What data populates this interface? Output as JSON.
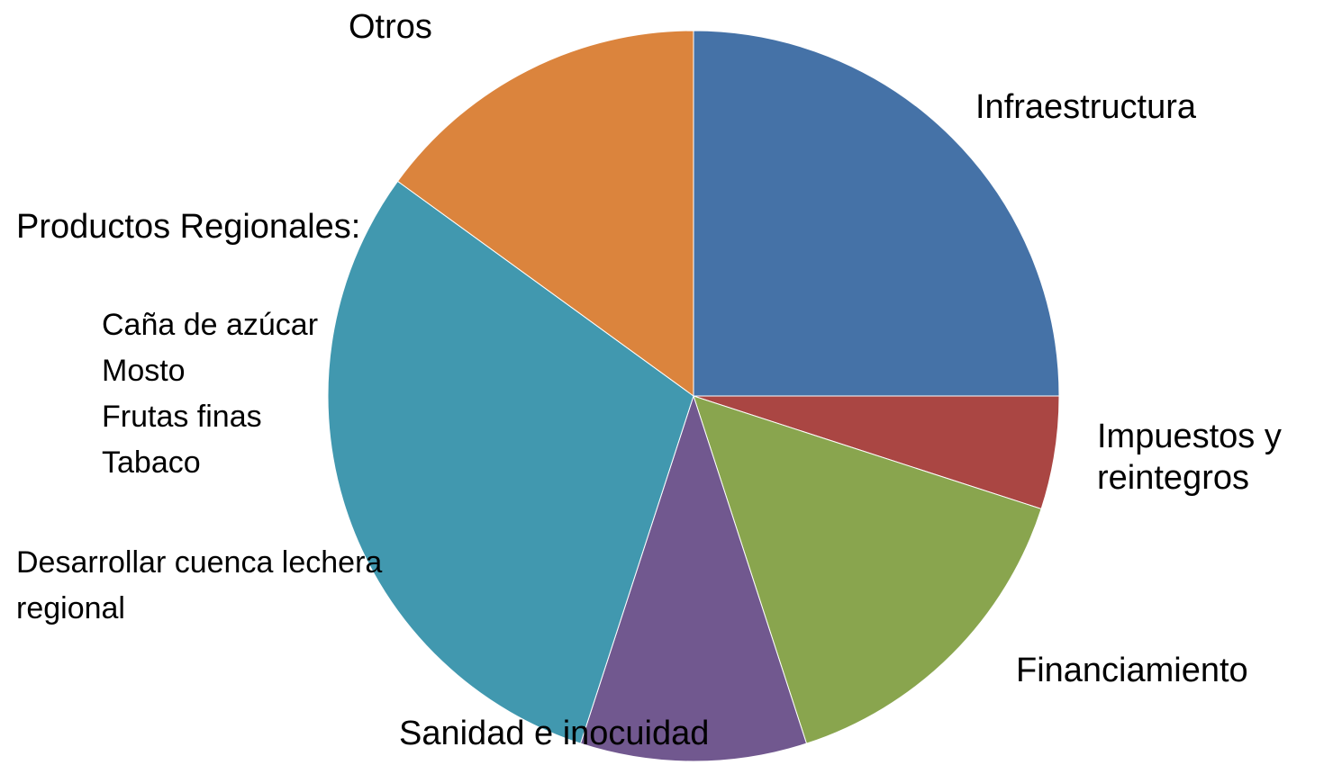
{
  "chart_data": {
    "type": "pie",
    "categories": [
      "Infraestructura",
      "Impuestos y reintegros",
      "Financiamiento",
      "Sanidad e inocuidad",
      "Productos Regionales:",
      "Otros"
    ],
    "values": [
      25,
      5,
      15,
      10,
      30,
      15
    ],
    "colors": [
      "#4572a7",
      "#aa4643",
      "#89a54e",
      "#71588f",
      "#4198af",
      "#db843d"
    ],
    "annotations": [
      "Caña de azúcar",
      "Mosto",
      "Frutas finas",
      "Tabaco",
      "Desarrollar cuenca lechera regional"
    ]
  }
}
